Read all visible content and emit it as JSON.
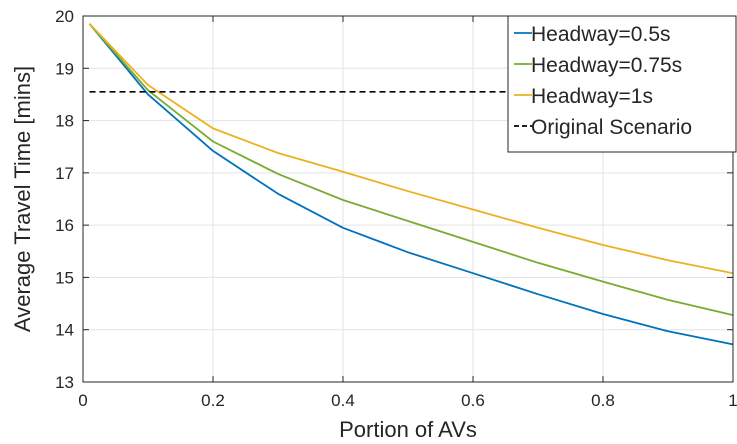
{
  "chart_data": {
    "type": "line",
    "title": "",
    "xlabel": "Portion of AVs",
    "ylabel": "Average Travel Time [mins]",
    "xlim": [
      0,
      1
    ],
    "ylim": [
      13,
      20
    ],
    "xticks": [
      0,
      0.2,
      0.4,
      0.6,
      0.8,
      1
    ],
    "xtick_labels": [
      "0",
      "0.2",
      "0.4",
      "0.6",
      "0.8",
      "1"
    ],
    "yticks": [
      13,
      14,
      15,
      16,
      17,
      18,
      19,
      20
    ],
    "ytick_labels": [
      "13",
      "14",
      "15",
      "16",
      "17",
      "18",
      "19",
      "20"
    ],
    "grid": true,
    "legend_position": "top-right",
    "x": [
      0.01,
      0.1,
      0.2,
      0.3,
      0.4,
      0.5,
      0.6,
      0.7,
      0.8,
      0.9,
      1.0
    ],
    "series": [
      {
        "name": "Headway=0.5s",
        "color": "#0072BD",
        "style": "solid",
        "values": [
          19.85,
          18.5,
          17.42,
          16.6,
          15.95,
          15.48,
          15.08,
          14.68,
          14.3,
          13.97,
          13.72
        ]
      },
      {
        "name": "Headway=0.75s",
        "color": "#77AC30",
        "style": "solid",
        "values": [
          19.85,
          18.58,
          17.6,
          16.98,
          16.48,
          16.08,
          15.68,
          15.28,
          14.92,
          14.57,
          14.28
        ]
      },
      {
        "name": "Headway=1s",
        "color": "#EDB120",
        "style": "solid",
        "values": [
          19.85,
          18.68,
          17.85,
          17.38,
          17.02,
          16.65,
          16.3,
          15.95,
          15.62,
          15.33,
          15.08
        ]
      },
      {
        "name": "Original Scenario",
        "color": "#000000",
        "style": "dashed",
        "constant": 18.55,
        "x_range": [
          0.01,
          1.0
        ]
      }
    ]
  }
}
